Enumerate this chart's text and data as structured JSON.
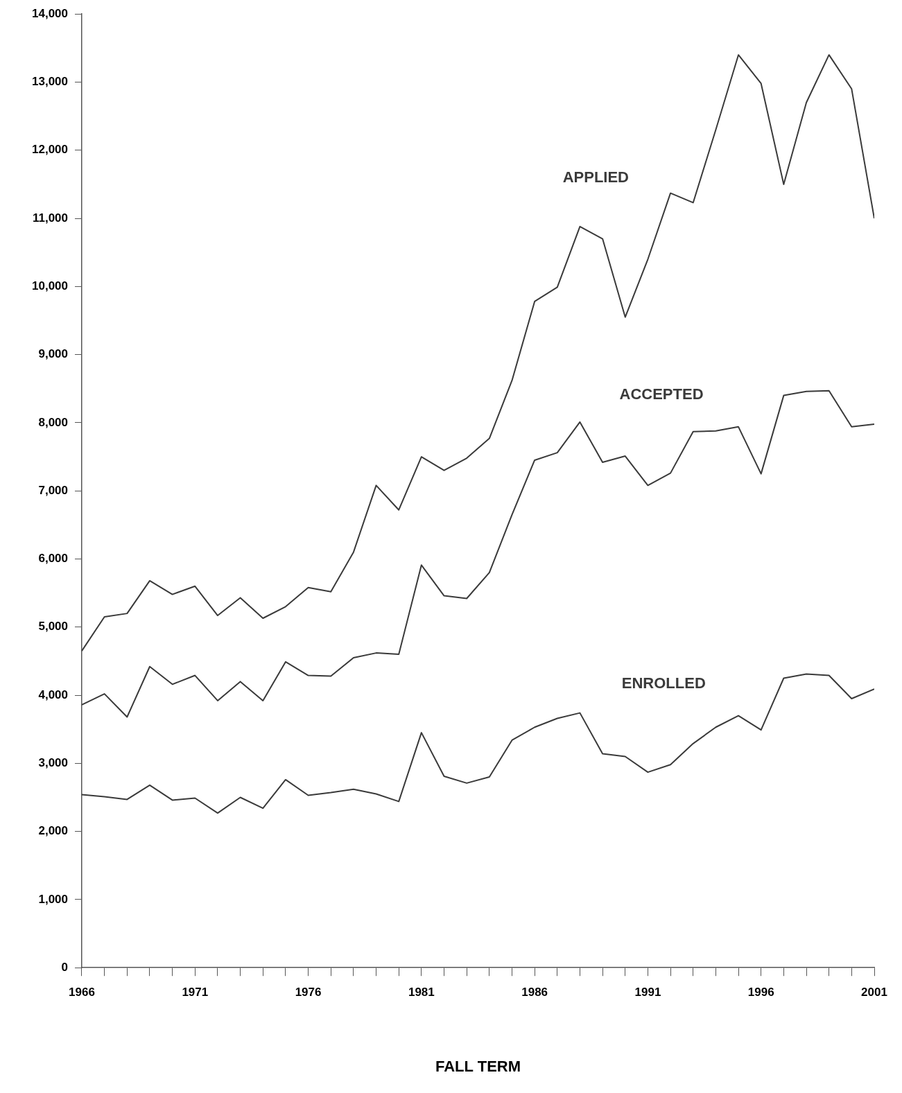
{
  "chart_data": {
    "type": "line",
    "xlabel": "FALL TERM",
    "x": [
      1966,
      1967,
      1968,
      1969,
      1970,
      1971,
      1972,
      1973,
      1974,
      1975,
      1976,
      1977,
      1978,
      1979,
      1980,
      1981,
      1982,
      1983,
      1984,
      1985,
      1986,
      1987,
      1988,
      1989,
      1990,
      1991,
      1992,
      1993,
      1994,
      1995,
      1996,
      1997,
      1998,
      1999,
      2000,
      2001
    ],
    "series": [
      {
        "name": "APPLIED",
        "color": "#3a3a3a",
        "values": [
          4650,
          5150,
          5200,
          5680,
          5480,
          5600,
          5170,
          5430,
          5130,
          5300,
          5580,
          5520,
          6100,
          7080,
          6720,
          7500,
          7300,
          7480,
          7770,
          8620,
          9780,
          9990,
          10880,
          10700,
          9550,
          10400,
          11370,
          11230,
          12300,
          13400,
          12980,
          11500,
          12700,
          13400,
          12900,
          11000
        ]
      },
      {
        "name": "ACCEPTED",
        "color": "#3a3a3a",
        "values": [
          3860,
          4020,
          3680,
          4420,
          4160,
          4290,
          3920,
          4200,
          3920,
          4490,
          4290,
          4280,
          4550,
          4620,
          4600,
          5910,
          5460,
          5420,
          5800,
          6650,
          7450,
          7560,
          8010,
          7420,
          7510,
          7080,
          7260,
          7870,
          7880,
          7940,
          7250,
          8400,
          8460,
          8470,
          7940,
          7980
        ]
      },
      {
        "name": "ENROLLED",
        "color": "#3a3a3a",
        "values": [
          2540,
          2510,
          2470,
          2680,
          2460,
          2490,
          2270,
          2500,
          2340,
          2760,
          2530,
          2570,
          2620,
          2550,
          2440,
          3450,
          2810,
          2710,
          2800,
          3340,
          3530,
          3660,
          3740,
          3140,
          3100,
          2870,
          2980,
          3290,
          3530,
          3700,
          3490,
          4250,
          4310,
          4290,
          3950,
          4090
        ]
      }
    ],
    "xlim": [
      1966,
      2001
    ],
    "xticks": [
      1966,
      {
        "value": 1967,
        "label": null
      },
      {
        "value": 1968,
        "label": null
      },
      {
        "value": 1969,
        "label": null
      },
      {
        "value": 1970,
        "label": null
      },
      1971,
      {
        "value": 1972,
        "label": null
      },
      {
        "value": 1973,
        "label": null
      },
      {
        "value": 1974,
        "label": null
      },
      {
        "value": 1975,
        "label": null
      },
      1976,
      {
        "value": 1977,
        "label": null
      },
      {
        "value": 1978,
        "label": null
      },
      {
        "value": 1979,
        "label": null
      },
      {
        "value": 1980,
        "label": null
      },
      1981,
      {
        "value": 1982,
        "label": null
      },
      {
        "value": 1983,
        "label": null
      },
      {
        "value": 1984,
        "label": null
      },
      {
        "value": 1985,
        "label": null
      },
      1986,
      {
        "value": 1987,
        "label": null
      },
      {
        "value": 1988,
        "label": null
      },
      {
        "value": 1989,
        "label": null
      },
      {
        "value": 1990,
        "label": null
      },
      1991,
      {
        "value": 1992,
        "label": null
      },
      {
        "value": 1993,
        "label": null
      },
      {
        "value": 1994,
        "label": null
      },
      {
        "value": 1995,
        "label": null
      },
      1996,
      {
        "value": 1997,
        "label": null
      },
      {
        "value": 1998,
        "label": null
      },
      {
        "value": 1999,
        "label": null
      },
      {
        "value": 2000,
        "label": null
      },
      2001
    ],
    "ylim": [
      0,
      14000
    ],
    "yticks": [
      {
        "value": 0,
        "label": "0"
      },
      {
        "value": 1000,
        "label": "1,000"
      },
      {
        "value": 2000,
        "label": "2,000"
      },
      {
        "value": 3000,
        "label": "3,000"
      },
      {
        "value": 4000,
        "label": "4,000"
      },
      {
        "value": 5000,
        "label": "5,000"
      },
      {
        "value": 6000,
        "label": "6,000"
      },
      {
        "value": 7000,
        "label": "7,000"
      },
      {
        "value": 8000,
        "label": "8,000"
      },
      {
        "value": 9000,
        "label": "9,000"
      },
      {
        "value": 10000,
        "label": "10,000"
      },
      {
        "value": 11000,
        "label": "11,000"
      },
      {
        "value": 12000,
        "label": "12,000"
      },
      {
        "value": 13000,
        "label": "13,000"
      },
      {
        "value": 14000,
        "label": "14,000"
      }
    ],
    "grid": false,
    "legend": false,
    "line_style": "solid"
  }
}
